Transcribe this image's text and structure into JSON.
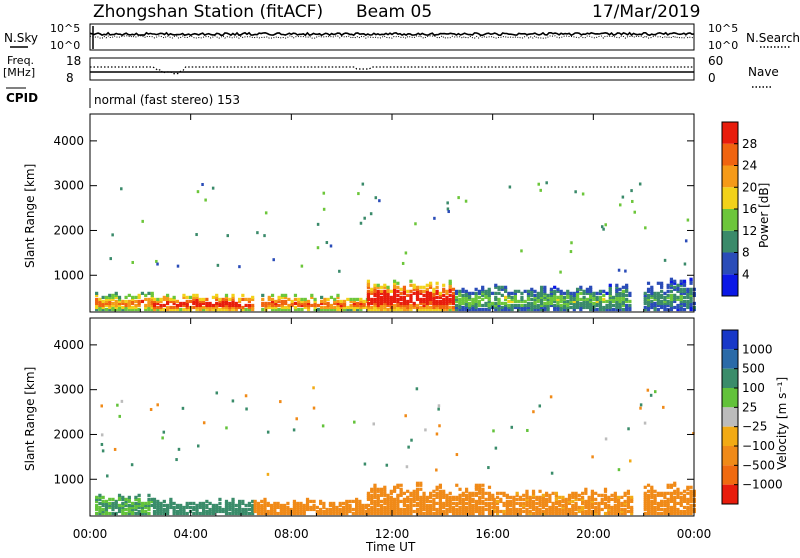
{
  "header": {
    "station": "Zhongshan Station (fitACF)",
    "beam": "Beam 05",
    "date": "17/Mar/2019"
  },
  "top_panels": {
    "nsky_label": "N.Sky",
    "nsky_tick_top": "10^5",
    "nsky_tick_bottom": "10^0",
    "nsearch_label": "N.Search",
    "nsearch_tick_top": "10^5",
    "nsearch_tick_bottom": "10^0",
    "freq_label_1": "Freq.",
    "freq_label_2": "[MHz]",
    "freq_tick_top": "18",
    "freq_tick_bottom": "8",
    "nave_label": "Nave",
    "nave_tick_top": "60",
    "nave_tick_bottom": "0",
    "cpid_label": "CPID",
    "cpid_text": "normal (fast stereo) 153"
  },
  "x_axis": {
    "label": "Time UT",
    "ticks": [
      "00:00",
      "04:00",
      "08:00",
      "12:00",
      "16:00",
      "20:00",
      "00:00"
    ]
  },
  "power_panel": {
    "ylabel": "Slant Range [km]",
    "yticks": [
      "1000",
      "2000",
      "3000",
      "4000"
    ],
    "colorbar_label": "Power [dB]",
    "colorbar_ticks": [
      "4",
      "8",
      "12",
      "16",
      "20",
      "24",
      "28"
    ],
    "colors": [
      "#0b18e6",
      "#2a4cb8",
      "#3a8a6a",
      "#6cc63a",
      "#f2d21a",
      "#f59a18",
      "#f06410",
      "#e81c0c"
    ]
  },
  "velocity_panel": {
    "ylabel": "Slant Range [km]",
    "yticks": [
      "1000",
      "2000",
      "3000",
      "4000"
    ],
    "colorbar_label": "Velocity [m s⁻¹]",
    "colorbar_ticks": [
      "1000",
      "500",
      "100",
      "25",
      "−25",
      "−100",
      "−500",
      "−1000"
    ],
    "colors": [
      "#1838c8",
      "#2a6aa8",
      "#3a8c6a",
      "#62c23a",
      "#bcbcbc",
      "#f2aa14",
      "#f08a18",
      "#f06a10",
      "#e81c0c"
    ]
  },
  "chart_data": [
    {
      "type": "heatmap",
      "title": "Power [dB]",
      "xlabel": "Time UT",
      "ylabel": "Slant Range [km]",
      "x_range_hours": [
        0,
        24
      ],
      "ylim": [
        180,
        4600
      ],
      "colorscale_range": [
        0,
        30
      ],
      "bands": [
        {
          "x_start": 0.2,
          "x_end": 2.5,
          "y_start": 200,
          "y_end": 600,
          "value": 18
        },
        {
          "x_start": 2.5,
          "x_end": 6.5,
          "y_start": 200,
          "y_end": 550,
          "value": 24
        },
        {
          "x_start": 6.8,
          "x_end": 11.0,
          "y_start": 200,
          "y_end": 550,
          "value": 20
        },
        {
          "x_start": 11.0,
          "x_end": 14.5,
          "y_start": 200,
          "y_end": 850,
          "value": 26
        },
        {
          "x_start": 14.5,
          "x_end": 21.5,
          "y_start": 200,
          "y_end": 750,
          "value": 10
        },
        {
          "x_start": 22.0,
          "x_end": 24.0,
          "y_start": 200,
          "y_end": 900,
          "value": 8
        }
      ]
    },
    {
      "type": "heatmap",
      "title": "Velocity [m s⁻¹]",
      "xlabel": "Time UT",
      "ylabel": "Slant Range [km]",
      "x_range_hours": [
        0,
        24
      ],
      "ylim": [
        180,
        4600
      ],
      "colorscale_range": [
        -1000,
        1000
      ],
      "bands": [
        {
          "x_start": 0.2,
          "x_end": 2.5,
          "y_start": 200,
          "y_end": 650,
          "value": 100
        },
        {
          "x_start": 2.5,
          "x_end": 6.5,
          "y_start": 200,
          "y_end": 550,
          "value": 300
        },
        {
          "x_start": 6.5,
          "x_end": 11.0,
          "y_start": 200,
          "y_end": 560,
          "value": -200
        },
        {
          "x_start": 11.0,
          "x_end": 16.0,
          "y_start": 200,
          "y_end": 900,
          "value": -250
        },
        {
          "x_start": 16.0,
          "x_end": 21.5,
          "y_start": 200,
          "y_end": 750,
          "value": -150
        },
        {
          "x_start": 22.0,
          "x_end": 24.0,
          "y_start": 200,
          "y_end": 900,
          "value": -200
        }
      ]
    }
  ]
}
